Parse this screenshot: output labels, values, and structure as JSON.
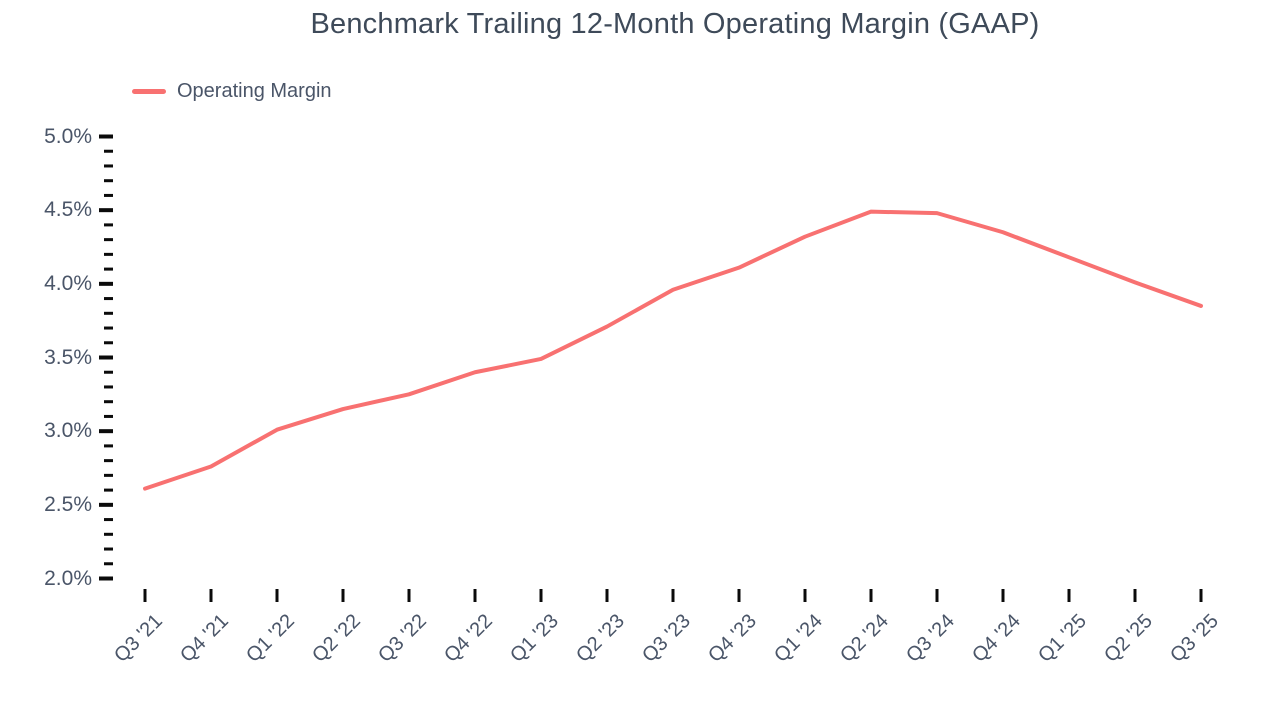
{
  "chart_data": {
    "type": "line",
    "title": "Benchmark Trailing 12-Month Operating Margin (GAAP)",
    "categories": [
      "Q3 '21",
      "Q4 '21",
      "Q1 '22",
      "Q2 '22",
      "Q3 '22",
      "Q4 '22",
      "Q1 '23",
      "Q2 '23",
      "Q3 '23",
      "Q4 '23",
      "Q1 '24",
      "Q2 '24",
      "Q3 '24",
      "Q4 '24",
      "Q1 '25",
      "Q2 '25",
      "Q3 '25"
    ],
    "series": [
      {
        "name": "Operating Margin",
        "values": [
          2.61,
          2.76,
          3.01,
          3.15,
          3.25,
          3.4,
          3.49,
          3.71,
          3.96,
          4.11,
          4.32,
          4.49,
          4.48,
          4.35,
          4.18,
          4.01,
          3.85
        ]
      }
    ],
    "xlabel": "",
    "ylabel": "",
    "ylim": [
      2.0,
      5.0
    ],
    "y_tick_labels": [
      "5.0%",
      "4.5%",
      "4.0%",
      "3.5%",
      "3.0%",
      "2.5%",
      "2.0%"
    ],
    "y_major_step": 0.5,
    "y_minor_step": 0.1,
    "grid": "off",
    "legend_position": "top-left",
    "colors": {
      "line": "#F87171",
      "title_text": "#3E4A59",
      "axis_text": "#4A5568",
      "tick_mark": "#0B0B0B",
      "background": "#FFFFFF"
    }
  }
}
